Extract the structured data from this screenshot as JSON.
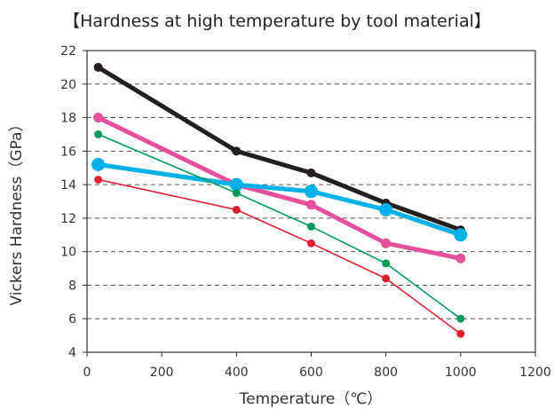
{
  "chart_data": {
    "type": "line",
    "title": "【Hardness at high temperature by tool material】",
    "xlabel": "Temperature（℃）",
    "ylabel": "Vickers Hardness（GPa）",
    "xlim": [
      0,
      1200
    ],
    "ylim": [
      4,
      22
    ],
    "x_ticks": [
      0,
      200,
      400,
      600,
      800,
      1000,
      1200
    ],
    "y_ticks": [
      4,
      6,
      8,
      10,
      12,
      14,
      16,
      18,
      20,
      22
    ],
    "x_tick_labels": [
      "0",
      "200",
      "400",
      "600",
      "800",
      "1000",
      "1200"
    ],
    "y_tick_labels": [
      "4",
      "6",
      "8",
      "10",
      "12",
      "14",
      "16",
      "18",
      "20",
      "22"
    ],
    "grid": "horizontal-dashed",
    "legend": "none",
    "series": [
      {
        "color": "#231f20",
        "x": [
          30,
          400,
          600,
          800,
          1000
        ],
        "y": [
          21.0,
          16.0,
          14.7,
          12.9,
          11.3
        ]
      },
      {
        "color": "#e5509a",
        "x": [
          30,
          400,
          600,
          800,
          1000
        ],
        "y": [
          18.0,
          14.0,
          12.8,
          10.5,
          9.6
        ]
      },
      {
        "color": "#00b0e8",
        "x": [
          30,
          400,
          600,
          800,
          1000
        ],
        "y": [
          15.2,
          14.0,
          13.6,
          12.5,
          11.0
        ]
      },
      {
        "color": "#009a5a",
        "x": [
          30,
          400,
          600,
          800,
          1000
        ],
        "y": [
          17.0,
          13.5,
          11.5,
          9.3,
          6.0
        ]
      },
      {
        "color": "#e02030",
        "x": [
          30,
          400,
          600,
          800,
          1000
        ],
        "y": [
          14.3,
          12.5,
          10.5,
          8.4,
          5.1
        ]
      }
    ]
  }
}
